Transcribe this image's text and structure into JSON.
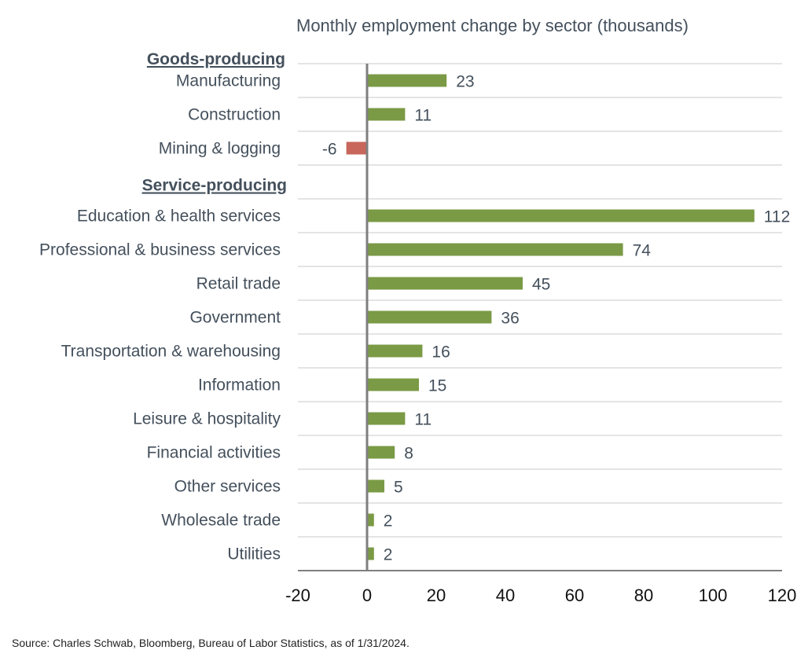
{
  "chart_data": {
    "type": "bar",
    "orientation": "horizontal",
    "title": "Monthly employment change by sector (thousands)",
    "xlim": [
      -20,
      120
    ],
    "xticks": [
      -20,
      0,
      20,
      40,
      60,
      80,
      100,
      120
    ],
    "grid": true,
    "colors": {
      "positive": "#7a9a45",
      "negative": "#c8665c",
      "zero_line": "#7f7f7f",
      "grid": "#c8c8c8"
    },
    "groups": [
      {
        "name": "Goods-producing",
        "categories": [
          "Manufacturing",
          "Construction",
          "Mining & logging"
        ],
        "values": [
          23,
          11,
          -6
        ]
      },
      {
        "name": "Service-producing",
        "categories": [
          "Education & health services",
          "Professional & business services",
          "Retail trade",
          "Government",
          "Transportation & warehousing",
          "Information",
          "Leisure & hospitality",
          "Financial activities",
          "Other services",
          "Wholesale trade",
          "Utilities"
        ],
        "values": [
          112,
          74,
          45,
          36,
          16,
          15,
          11,
          8,
          5,
          2,
          2
        ]
      }
    ]
  },
  "source": "Source: Charles Schwab, Bloomberg, Bureau of Labor Statistics, as of 1/31/2024."
}
